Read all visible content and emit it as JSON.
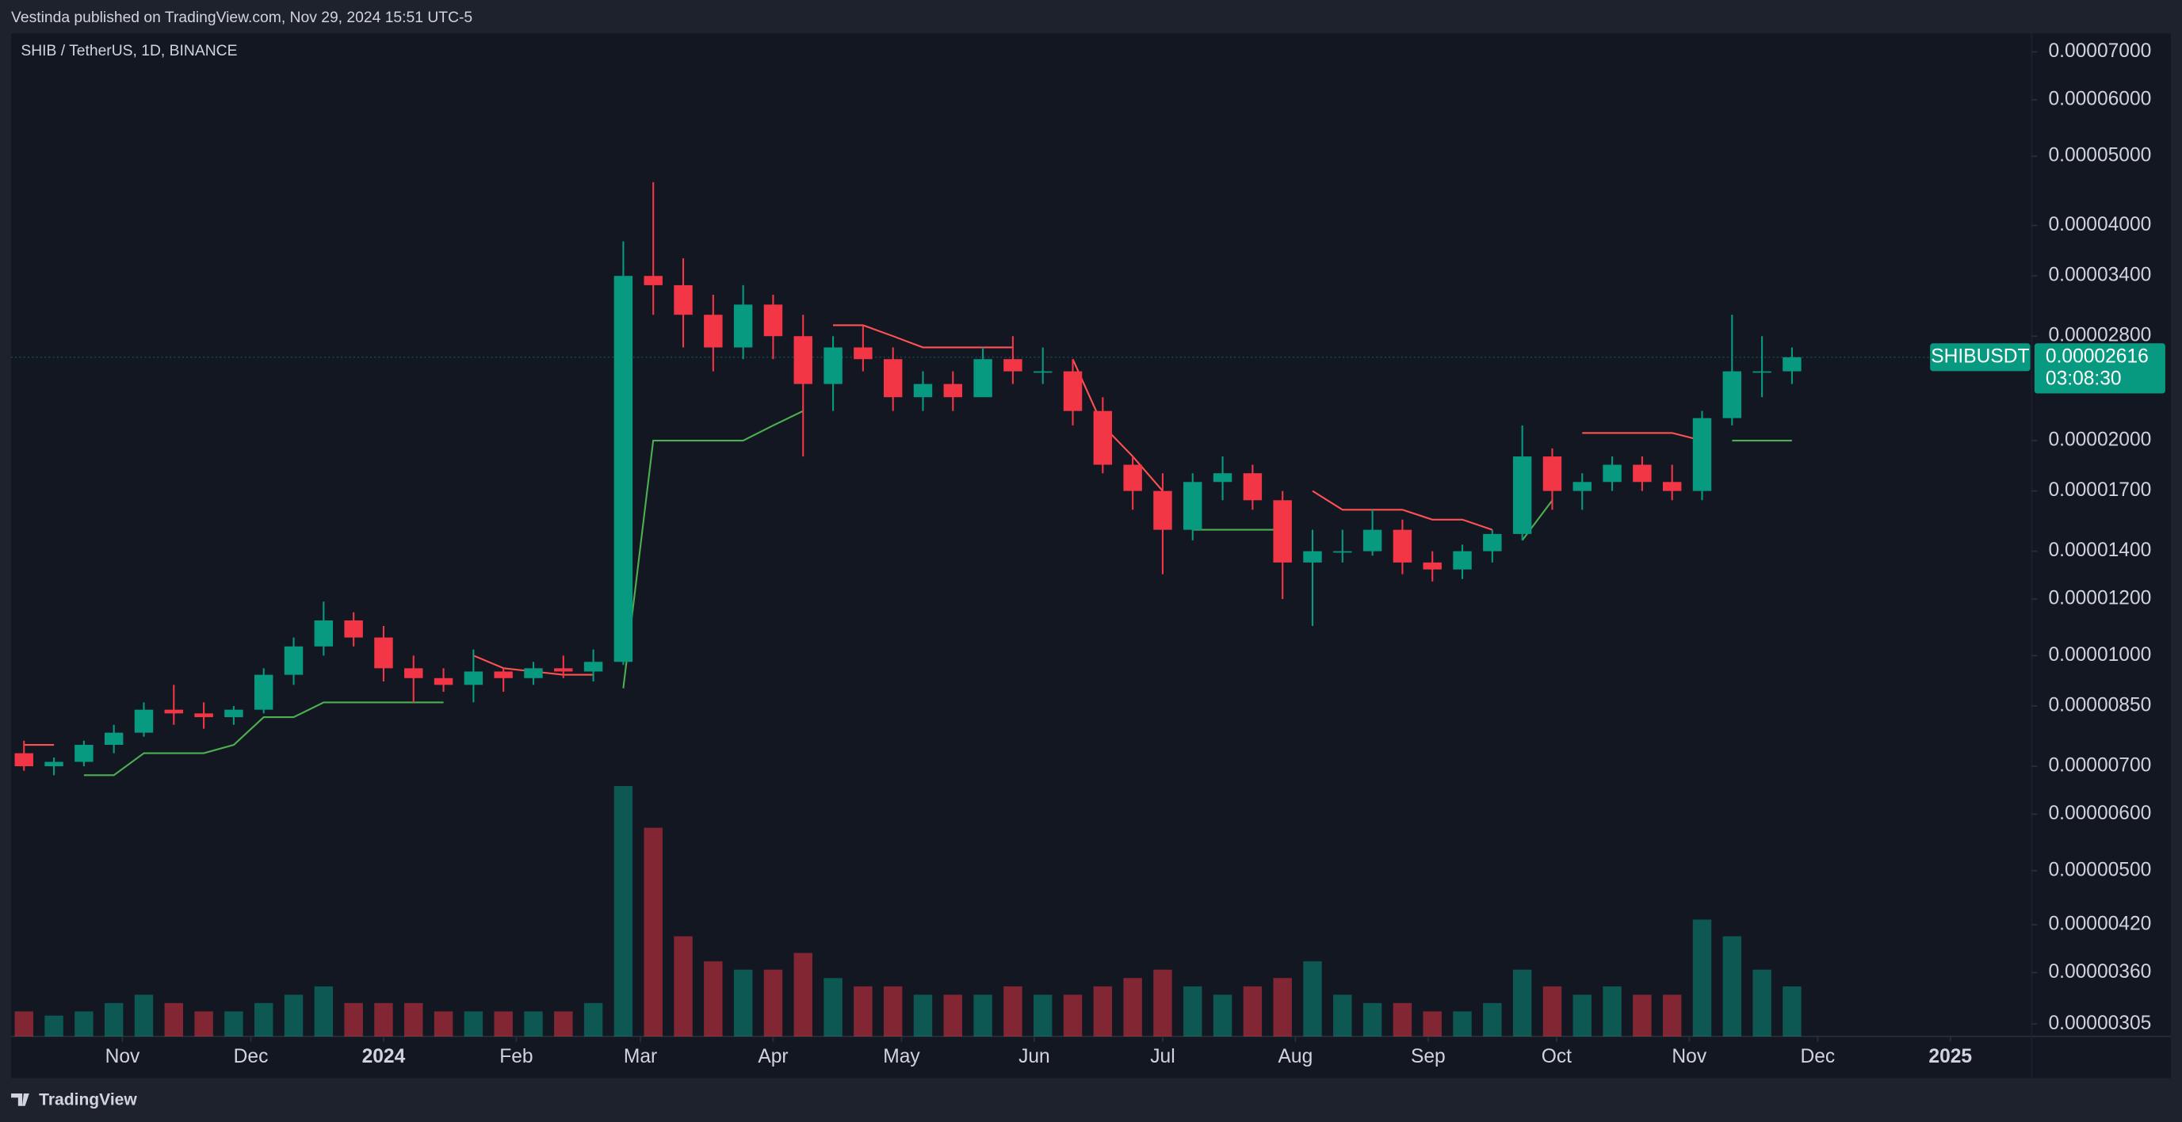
{
  "header": {
    "publisher": "Vestinda published on TradingView.com, Nov 29, 2024 15:51 UTC-5"
  },
  "footer": {
    "brand": "TradingView"
  },
  "chart_data": {
    "type": "candlestick",
    "title": "SHIB / TetherUS, 1D, BINANCE",
    "log_scale": true,
    "up_color": "#089981",
    "down_color": "#f23645",
    "x": [
      "2023-10-09",
      "2023-10-16",
      "2023-10-23",
      "2023-10-30",
      "2023-11-06",
      "2023-11-13",
      "2023-11-20",
      "2023-11-27",
      "2023-12-04",
      "2023-12-11",
      "2023-12-18",
      "2023-12-25",
      "2024-01-01",
      "2024-01-08",
      "2024-01-15",
      "2024-01-22",
      "2024-01-29",
      "2024-02-05",
      "2024-02-12",
      "2024-02-19",
      "2024-02-26",
      "2024-03-04",
      "2024-03-11",
      "2024-03-18",
      "2024-03-25",
      "2024-04-01",
      "2024-04-08",
      "2024-04-15",
      "2024-04-22",
      "2024-04-29",
      "2024-05-06",
      "2024-05-13",
      "2024-05-20",
      "2024-05-27",
      "2024-06-03",
      "2024-06-10",
      "2024-06-17",
      "2024-06-24",
      "2024-07-01",
      "2024-07-08",
      "2024-07-15",
      "2024-07-22",
      "2024-07-29",
      "2024-08-05",
      "2024-08-12",
      "2024-08-19",
      "2024-08-26",
      "2024-09-02",
      "2024-09-09",
      "2024-09-16",
      "2024-09-23",
      "2024-09-30",
      "2024-10-07",
      "2024-10-14",
      "2024-10-21",
      "2024-10-28",
      "2024-11-04",
      "2024-11-11",
      "2024-11-18",
      "2024-11-25"
    ],
    "open": [
      7.3e-06,
      7e-06,
      7.1e-06,
      7.5e-06,
      7.8e-06,
      8.4e-06,
      8.3e-06,
      8.2e-06,
      8.4e-06,
      9.4e-06,
      1.03e-05,
      1.12e-05,
      1.06e-05,
      9.6e-06,
      9.3e-06,
      9.1e-06,
      9.5e-06,
      9.3e-06,
      9.6e-06,
      9.5e-06,
      9.8e-06,
      3.4e-05,
      3.3e-05,
      3e-05,
      2.7e-05,
      3.1e-05,
      2.8e-05,
      2.4e-05,
      2.7e-05,
      2.6e-05,
      2.3e-05,
      2.4e-05,
      2.3e-05,
      2.6e-05,
      2.5e-05,
      2.5e-05,
      2.2e-05,
      1.85e-05,
      1.7e-05,
      1.5e-05,
      1.75e-05,
      1.8e-05,
      1.65e-05,
      1.35e-05,
      1.4e-05,
      1.4e-05,
      1.5e-05,
      1.35e-05,
      1.32e-05,
      1.4e-05,
      1.48e-05,
      1.9e-05,
      1.7e-05,
      1.75e-05,
      1.85e-05,
      1.75e-05,
      1.7e-05,
      2.15e-05,
      2.5e-05,
      2.5e-05
    ],
    "high": [
      7.6e-06,
      7.2e-06,
      7.6e-06,
      8e-06,
      8.6e-06,
      9.1e-06,
      8.6e-06,
      8.5e-06,
      9.6e-06,
      1.06e-05,
      1.19e-05,
      1.15e-05,
      1.1e-05,
      1e-05,
      9.6e-06,
      1.02e-05,
      9.6e-06,
      9.8e-06,
      1e-05,
      1.02e-05,
      3.8e-05,
      4.6e-05,
      3.6e-05,
      3.2e-05,
      3.3e-05,
      3.2e-05,
      3e-05,
      2.8e-05,
      2.9e-05,
      2.7e-05,
      2.5e-05,
      2.5e-05,
      2.7e-05,
      2.8e-05,
      2.7e-05,
      2.6e-05,
      2.3e-05,
      1.9e-05,
      1.8e-05,
      1.8e-05,
      1.9e-05,
      1.85e-05,
      1.7e-05,
      1.5e-05,
      1.5e-05,
      1.6e-05,
      1.55e-05,
      1.4e-05,
      1.43e-05,
      1.5e-05,
      2.1e-05,
      1.95e-05,
      1.8e-05,
      1.9e-05,
      1.9e-05,
      1.85e-05,
      2.2e-05,
      3e-05,
      2.8e-05,
      2.7e-05
    ],
    "low": [
      6.9e-06,
      6.8e-06,
      7e-06,
      7.3e-06,
      7.7e-06,
      8e-06,
      7.9e-06,
      8e-06,
      8.3e-06,
      9.1e-06,
      1e-05,
      1.03e-05,
      9.2e-06,
      8.6e-06,
      8.9e-06,
      8.6e-06,
      8.9e-06,
      9.1e-06,
      9.3e-06,
      9.2e-06,
      9.7e-06,
      3e-05,
      2.7e-05,
      2.5e-05,
      2.6e-05,
      2.6e-05,
      1.9e-05,
      2.2e-05,
      2.5e-05,
      2.2e-05,
      2.2e-05,
      2.2e-05,
      2.3e-05,
      2.4e-05,
      2.4e-05,
      2.1e-05,
      1.8e-05,
      1.6e-05,
      1.3e-05,
      1.45e-05,
      1.65e-05,
      1.6e-05,
      1.2e-05,
      1.1e-05,
      1.35e-05,
      1.38e-05,
      1.3e-05,
      1.27e-05,
      1.28e-05,
      1.35e-05,
      1.45e-05,
      1.6e-05,
      1.6e-05,
      1.7e-05,
      1.7e-05,
      1.65e-05,
      1.65e-05,
      2.1e-05,
      2.3e-05,
      2.4e-05
    ],
    "close": [
      7e-06,
      7.1e-06,
      7.5e-06,
      7.8e-06,
      8.4e-06,
      8.3e-06,
      8.2e-06,
      8.4e-06,
      9.4e-06,
      1.03e-05,
      1.12e-05,
      1.06e-05,
      9.6e-06,
      9.3e-06,
      9.1e-06,
      9.5e-06,
      9.3e-06,
      9.6e-06,
      9.5e-06,
      9.8e-06,
      3.4e-05,
      3.3e-05,
      3e-05,
      2.7e-05,
      3.1e-05,
      2.8e-05,
      2.4e-05,
      2.7e-05,
      2.6e-05,
      2.3e-05,
      2.4e-05,
      2.3e-05,
      2.6e-05,
      2.5e-05,
      2.5e-05,
      2.2e-05,
      1.85e-05,
      1.7e-05,
      1.5e-05,
      1.75e-05,
      1.8e-05,
      1.65e-05,
      1.35e-05,
      1.4e-05,
      1.4e-05,
      1.5e-05,
      1.35e-05,
      1.32e-05,
      1.4e-05,
      1.48e-05,
      1.9e-05,
      1.7e-05,
      1.75e-05,
      1.85e-05,
      1.75e-05,
      1.7e-05,
      2.15e-05,
      2.5e-05,
      2.5e-05,
      2.616e-05
    ],
    "volume": [
      3,
      2.5,
      3,
      4,
      5,
      4,
      3,
      3,
      4,
      5,
      6,
      4,
      4,
      4,
      3,
      3,
      3,
      3,
      3,
      4,
      30,
      25,
      12,
      9,
      8,
      8,
      10,
      7,
      6,
      6,
      5,
      5,
      5,
      6,
      5,
      5,
      6,
      7,
      8,
      6,
      5,
      6,
      7,
      9,
      5,
      4,
      4,
      3,
      3,
      4,
      8,
      6,
      5,
      6,
      5,
      5,
      14,
      12,
      8,
      6
    ],
    "supertrend": [
      {
        "color": "#4caf50",
        "values": [
          null,
          null,
          6.8e-06,
          6.8e-06,
          7.3e-06,
          7.3e-06,
          7.3e-06,
          7.5e-06,
          8.2e-06,
          8.2e-06,
          8.6e-06,
          8.6e-06,
          8.6e-06,
          8.6e-06,
          8.6e-06,
          null,
          null,
          null,
          null,
          null,
          9e-06,
          2e-05,
          2e-05,
          2e-05,
          2e-05,
          2.1e-05,
          2.2e-05,
          null,
          null,
          null,
          null,
          null,
          null,
          null,
          2.3e-05,
          null,
          null,
          null,
          null,
          1.5e-05,
          1.5e-05,
          1.5e-05,
          1.5e-05,
          null,
          null,
          null,
          null,
          null,
          null,
          null,
          1.45e-05,
          1.65e-05,
          null,
          null,
          null,
          null,
          null,
          2e-05,
          2e-05,
          2e-05
        ]
      },
      {
        "color": "#ff5252",
        "values": [
          7.5e-06,
          7.5e-06,
          null,
          null,
          null,
          null,
          null,
          null,
          null,
          null,
          null,
          null,
          null,
          null,
          null,
          1e-05,
          9.6e-06,
          9.5e-06,
          9.4e-06,
          9.4e-06,
          null,
          null,
          null,
          null,
          null,
          null,
          null,
          2.9e-05,
          2.9e-05,
          2.8e-05,
          2.7e-05,
          2.7e-05,
          2.7e-05,
          2.7e-05,
          null,
          2.6e-05,
          2.1e-05,
          1.9e-05,
          1.7e-05,
          null,
          null,
          null,
          null,
          1.7e-05,
          1.6e-05,
          1.6e-05,
          1.6e-05,
          1.55e-05,
          1.55e-05,
          1.5e-05,
          null,
          null,
          2.05e-05,
          2.05e-05,
          2.05e-05,
          2.05e-05,
          2e-05,
          null,
          null,
          null
        ]
      }
    ],
    "xlim": [
      "2023-10-06",
      "2025-01-20"
    ],
    "xticks": [
      {
        "value": "2023-11-01",
        "label": "Nov"
      },
      {
        "value": "2023-12-01",
        "label": "Dec"
      },
      {
        "value": "2024-01-01",
        "label": "2024"
      },
      {
        "value": "2024-02-01",
        "label": "Feb"
      },
      {
        "value": "2024-03-01",
        "label": "Mar"
      },
      {
        "value": "2024-04-01",
        "label": "Apr"
      },
      {
        "value": "2024-05-01",
        "label": "May"
      },
      {
        "value": "2024-06-01",
        "label": "Jun"
      },
      {
        "value": "2024-07-01",
        "label": "Jul"
      },
      {
        "value": "2024-08-01",
        "label": "Aug"
      },
      {
        "value": "2024-09-01",
        "label": "Sep"
      },
      {
        "value": "2024-10-01",
        "label": "Oct"
      },
      {
        "value": "2024-11-01",
        "label": "Nov"
      },
      {
        "value": "2024-12-01",
        "label": "Dec"
      },
      {
        "value": "2025-01-01",
        "label": "2025"
      }
    ],
    "ylim": [
      2.93e-06,
      7.43e-05
    ],
    "yticks": [
      {
        "value": 7e-05,
        "label": "0.00007000"
      },
      {
        "value": 6e-05,
        "label": "0.00006000"
      },
      {
        "value": 5e-05,
        "label": "0.00005000"
      },
      {
        "value": 4e-05,
        "label": "0.00004000"
      },
      {
        "value": 3.4e-05,
        "label": "0.00003400"
      },
      {
        "value": 2.8e-05,
        "label": "0.00002800"
      },
      {
        "value": 2e-05,
        "label": "0.00002000"
      },
      {
        "value": 1.7e-05,
        "label": "0.00001700"
      },
      {
        "value": 1.4e-05,
        "label": "0.00001400"
      },
      {
        "value": 1.2e-05,
        "label": "0.00001200"
      },
      {
        "value": 1e-05,
        "label": "0.00001000"
      },
      {
        "value": 8.5e-06,
        "label": "0.00000850"
      },
      {
        "value": 7e-06,
        "label": "0.00000700"
      },
      {
        "value": 6e-06,
        "label": "0.00000600"
      },
      {
        "value": 5e-06,
        "label": "0.00000500"
      },
      {
        "value": 4.2e-06,
        "label": "0.00000420"
      },
      {
        "value": 3.6e-06,
        "label": "0.00000360"
      },
      {
        "value": 3.05e-06,
        "label": "0.00000305"
      }
    ],
    "last_price": {
      "symbol": "SHIBUSDT",
      "value": 2.616e-05,
      "label": "0.00002616",
      "countdown": "03:08:30",
      "color": "#089981"
    }
  }
}
